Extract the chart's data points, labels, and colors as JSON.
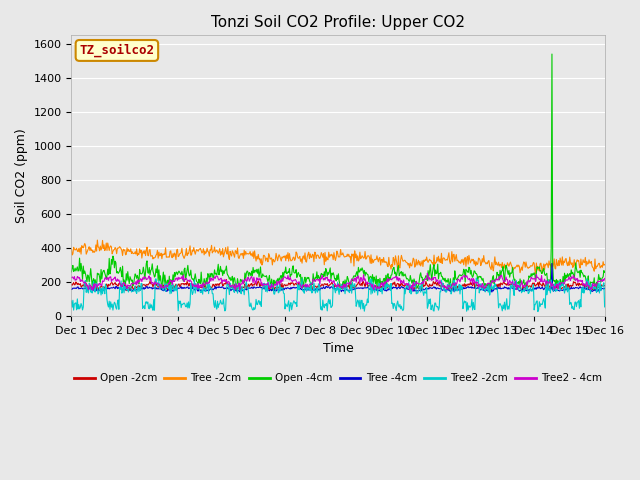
{
  "title": "Tonzi Soil CO2 Profile: Upper CO2",
  "ylabel": "Soil CO2 (ppm)",
  "xlabel": "Time",
  "ylim": [
    0,
    1650
  ],
  "yticks": [
    0,
    200,
    400,
    600,
    800,
    1000,
    1200,
    1400,
    1600
  ],
  "xtick_labels": [
    "Dec 1",
    "Dec 2",
    "Dec 3",
    "Dec 4",
    "Dec 5",
    "Dec 6",
    "Dec 7",
    "Dec 8",
    "Dec 9",
    "Dec 10",
    "Dec 11",
    "Dec 12",
    "Dec 13",
    "Dec 14",
    "Dec 15",
    "Dec 16"
  ],
  "dataset_label": "TZ_soilco2",
  "legend_entries": [
    "Open -2cm",
    "Tree -2cm",
    "Open -4cm",
    "Tree -4cm",
    "Tree2 -2cm",
    "Tree2 - 4cm"
  ],
  "legend_colors": [
    "#cc0000",
    "#ff8800",
    "#00cc00",
    "#0000cc",
    "#00cccc",
    "#cc00cc"
  ],
  "fig_bg_color": "#e8e8e8",
  "plot_bg_color": "#e8e8e8",
  "title_fontsize": 11,
  "label_fontsize": 9,
  "tick_fontsize": 8
}
